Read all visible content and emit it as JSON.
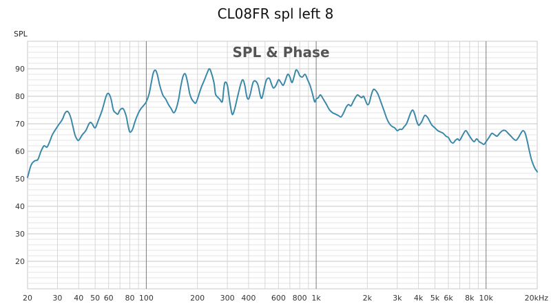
{
  "chart_data": {
    "type": "line",
    "title": "CL08FR spl left 8",
    "inset_title": "SPL & Phase",
    "ylabel": "SPL",
    "xlabel": "",
    "xscale": "log",
    "xlim": [
      20,
      20000
    ],
    "ylim": [
      10,
      100
    ],
    "y_ticks": [
      20,
      30,
      40,
      50,
      60,
      70,
      80,
      90
    ],
    "x_ticks": [
      {
        "value": 20,
        "label": "20"
      },
      {
        "value": 30,
        "label": "30"
      },
      {
        "value": 40,
        "label": "40"
      },
      {
        "value": 50,
        "label": "50"
      },
      {
        "value": 60,
        "label": "60"
      },
      {
        "value": 80,
        "label": "80"
      },
      {
        "value": 100,
        "label": "100"
      },
      {
        "value": 200,
        "label": "200"
      },
      {
        "value": 300,
        "label": "300"
      },
      {
        "value": 400,
        "label": "400"
      },
      {
        "value": 600,
        "label": "600"
      },
      {
        "value": 800,
        "label": "800"
      },
      {
        "value": 1000,
        "label": "1k"
      },
      {
        "value": 2000,
        "label": "2k"
      },
      {
        "value": 3000,
        "label": "3k"
      },
      {
        "value": 4000,
        "label": "4k"
      },
      {
        "value": 5000,
        "label": "5k"
      },
      {
        "value": 6000,
        "label": "6k"
      },
      {
        "value": 8000,
        "label": "8k"
      },
      {
        "value": 10000,
        "label": "10k"
      },
      {
        "value": 20000,
        "label": "20kHz"
      }
    ],
    "grid": true,
    "series": [
      {
        "color": "#3a88a8",
        "points": [
          [
            20,
            50.5
          ],
          [
            21,
            55
          ],
          [
            22,
            56.5
          ],
          [
            23,
            57
          ],
          [
            24,
            60
          ],
          [
            25,
            62
          ],
          [
            26,
            61.5
          ],
          [
            27,
            63.5
          ],
          [
            28,
            66
          ],
          [
            30,
            69
          ],
          [
            32,
            71.5
          ],
          [
            33,
            73.5
          ],
          [
            34,
            74.5
          ],
          [
            35,
            74
          ],
          [
            36,
            72
          ],
          [
            37,
            69
          ],
          [
            38,
            66
          ],
          [
            39,
            64.5
          ],
          [
            40,
            64
          ],
          [
            42,
            66
          ],
          [
            44,
            67.5
          ],
          [
            46,
            70
          ],
          [
            47,
            70.5
          ],
          [
            48,
            70
          ],
          [
            50,
            68.5
          ],
          [
            52,
            71
          ],
          [
            55,
            75
          ],
          [
            58,
            80
          ],
          [
            60,
            81
          ],
          [
            62,
            79
          ],
          [
            64,
            75
          ],
          [
            66,
            74
          ],
          [
            68,
            73.5
          ],
          [
            70,
            75
          ],
          [
            73,
            75.5
          ],
          [
            76,
            73
          ],
          [
            78,
            69.5
          ],
          [
            80,
            67
          ],
          [
            83,
            68
          ],
          [
            86,
            71
          ],
          [
            90,
            74
          ],
          [
            93,
            75.5
          ],
          [
            96,
            76.5
          ],
          [
            100,
            78
          ],
          [
            104,
            81
          ],
          [
            107,
            85
          ],
          [
            110,
            88.5
          ],
          [
            113,
            89.5
          ],
          [
            116,
            88
          ],
          [
            120,
            84
          ],
          [
            125,
            80.5
          ],
          [
            130,
            79
          ],
          [
            135,
            77
          ],
          [
            140,
            75.5
          ],
          [
            145,
            74
          ],
          [
            150,
            75.5
          ],
          [
            155,
            79
          ],
          [
            160,
            84
          ],
          [
            165,
            87.5
          ],
          [
            170,
            88
          ],
          [
            175,
            85
          ],
          [
            180,
            81
          ],
          [
            185,
            79
          ],
          [
            190,
            78
          ],
          [
            195,
            77.5
          ],
          [
            200,
            79
          ],
          [
            210,
            83
          ],
          [
            220,
            86
          ],
          [
            230,
            89
          ],
          [
            235,
            90
          ],
          [
            240,
            89
          ],
          [
            250,
            85
          ],
          [
            255,
            81
          ],
          [
            260,
            80
          ],
          [
            270,
            79
          ],
          [
            280,
            78
          ],
          [
            285,
            82
          ],
          [
            290,
            85
          ],
          [
            300,
            84
          ],
          [
            310,
            78
          ],
          [
            320,
            73.5
          ],
          [
            330,
            75
          ],
          [
            345,
            80
          ],
          [
            360,
            84.5
          ],
          [
            370,
            86
          ],
          [
            380,
            84
          ],
          [
            390,
            80
          ],
          [
            400,
            79
          ],
          [
            410,
            81
          ],
          [
            425,
            85
          ],
          [
            440,
            85.5
          ],
          [
            455,
            84
          ],
          [
            470,
            80
          ],
          [
            480,
            79.5
          ],
          [
            495,
            83
          ],
          [
            510,
            86
          ],
          [
            530,
            86.5
          ],
          [
            545,
            84.5
          ],
          [
            560,
            83
          ],
          [
            580,
            84
          ],
          [
            600,
            86
          ],
          [
            620,
            85
          ],
          [
            640,
            84
          ],
          [
            660,
            86
          ],
          [
            680,
            88
          ],
          [
            700,
            87
          ],
          [
            720,
            85
          ],
          [
            740,
            87
          ],
          [
            760,
            89.5
          ],
          [
            780,
            89
          ],
          [
            800,
            87.5
          ],
          [
            830,
            87
          ],
          [
            860,
            88
          ],
          [
            890,
            86
          ],
          [
            920,
            84
          ],
          [
            950,
            81
          ],
          [
            980,
            78
          ],
          [
            1000,
            79
          ],
          [
            1030,
            79.5
          ],
          [
            1060,
            80.5
          ],
          [
            1100,
            79
          ],
          [
            1150,
            77
          ],
          [
            1200,
            75
          ],
          [
            1250,
            74
          ],
          [
            1300,
            73.5
          ],
          [
            1350,
            73
          ],
          [
            1400,
            72.5
          ],
          [
            1450,
            74
          ],
          [
            1500,
            76
          ],
          [
            1550,
            77
          ],
          [
            1600,
            76.5
          ],
          [
            1650,
            78
          ],
          [
            1700,
            79.5
          ],
          [
            1750,
            80.5
          ],
          [
            1800,
            80
          ],
          [
            1850,
            79.5
          ],
          [
            1900,
            80
          ],
          [
            1950,
            78.5
          ],
          [
            2000,
            77
          ],
          [
            2050,
            77.5
          ],
          [
            2100,
            80
          ],
          [
            2150,
            82
          ],
          [
            2200,
            82.5
          ],
          [
            2300,
            81
          ],
          [
            2400,
            78
          ],
          [
            2500,
            75
          ],
          [
            2600,
            72
          ],
          [
            2700,
            70
          ],
          [
            2800,
            69
          ],
          [
            2900,
            68.5
          ],
          [
            3000,
            67.5
          ],
          [
            3100,
            68
          ],
          [
            3200,
            68
          ],
          [
            3300,
            69
          ],
          [
            3400,
            70
          ],
          [
            3500,
            72
          ],
          [
            3600,
            74
          ],
          [
            3700,
            75
          ],
          [
            3800,
            73.5
          ],
          [
            3900,
            71
          ],
          [
            4000,
            69.5
          ],
          [
            4100,
            70
          ],
          [
            4200,
            71
          ],
          [
            4350,
            73
          ],
          [
            4500,
            72.5
          ],
          [
            4650,
            71
          ],
          [
            4800,
            69.5
          ],
          [
            5000,
            68.5
          ],
          [
            5200,
            67.5
          ],
          [
            5400,
            67
          ],
          [
            5600,
            66.5
          ],
          [
            5800,
            65.5
          ],
          [
            6000,
            65
          ],
          [
            6200,
            63.5
          ],
          [
            6400,
            63
          ],
          [
            6600,
            64
          ],
          [
            6800,
            64.5
          ],
          [
            7000,
            64
          ],
          [
            7300,
            66
          ],
          [
            7600,
            67.5
          ],
          [
            7900,
            66
          ],
          [
            8200,
            64.5
          ],
          [
            8500,
            63.5
          ],
          [
            8800,
            64.5
          ],
          [
            9100,
            63.5
          ],
          [
            9400,
            63
          ],
          [
            9700,
            62.5
          ],
          [
            10000,
            63.5
          ],
          [
            10400,
            65
          ],
          [
            10800,
            66.5
          ],
          [
            11200,
            66
          ],
          [
            11600,
            65.5
          ],
          [
            12000,
            66.5
          ],
          [
            12500,
            67.5
          ],
          [
            13000,
            67.5
          ],
          [
            13500,
            66.5
          ],
          [
            14000,
            65.5
          ],
          [
            14500,
            64.5
          ],
          [
            15000,
            64
          ],
          [
            15500,
            65
          ],
          [
            16000,
            66.5
          ],
          [
            16500,
            67.5
          ],
          [
            17000,
            66.5
          ],
          [
            17500,
            63.5
          ],
          [
            18000,
            60
          ],
          [
            18500,
            57
          ],
          [
            19000,
            55
          ],
          [
            19500,
            53.5
          ],
          [
            19800,
            53
          ],
          [
            20000,
            52.5
          ]
        ]
      }
    ]
  }
}
